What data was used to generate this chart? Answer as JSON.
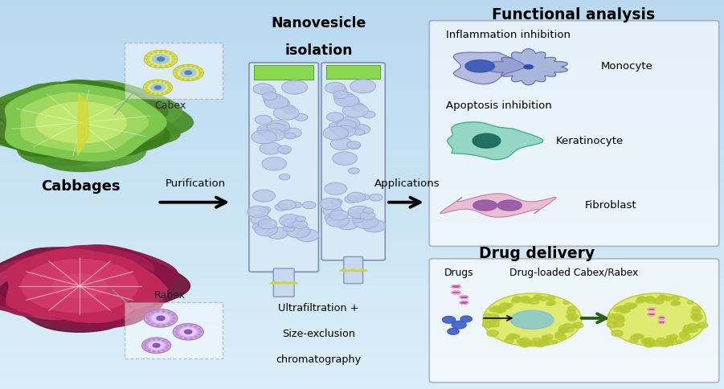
{
  "bg_top": "#daeef8",
  "bg_bottom": "#b8d8f0",
  "title_functional": "Functional analysis",
  "title_drug": "Drug delivery",
  "label_cabbages": "Cabbages",
  "label_cabex": "Cabex",
  "label_rabex": "Rabex",
  "label_purification": "Purification",
  "label_applications": "Applications",
  "label_nanovesicle1": "Nanovesicle",
  "label_nanovesicle2": "isolation",
  "label_ultrafiltration": "Ultrafiltration +",
  "label_size_exclusion": "Size-exclusion",
  "label_chromatography": "chromatography",
  "label_inflammation": "Inflammation inhibition",
  "label_monocyte": "Monocyte",
  "label_apoptosis": "Apoptosis inhibition",
  "label_keratinocyte": "Keratinocyte",
  "label_fibroblast": "Fibroblast",
  "label_drugs": "Drugs",
  "label_drug_loaded": "Drug-loaded Cabex/Rabex"
}
